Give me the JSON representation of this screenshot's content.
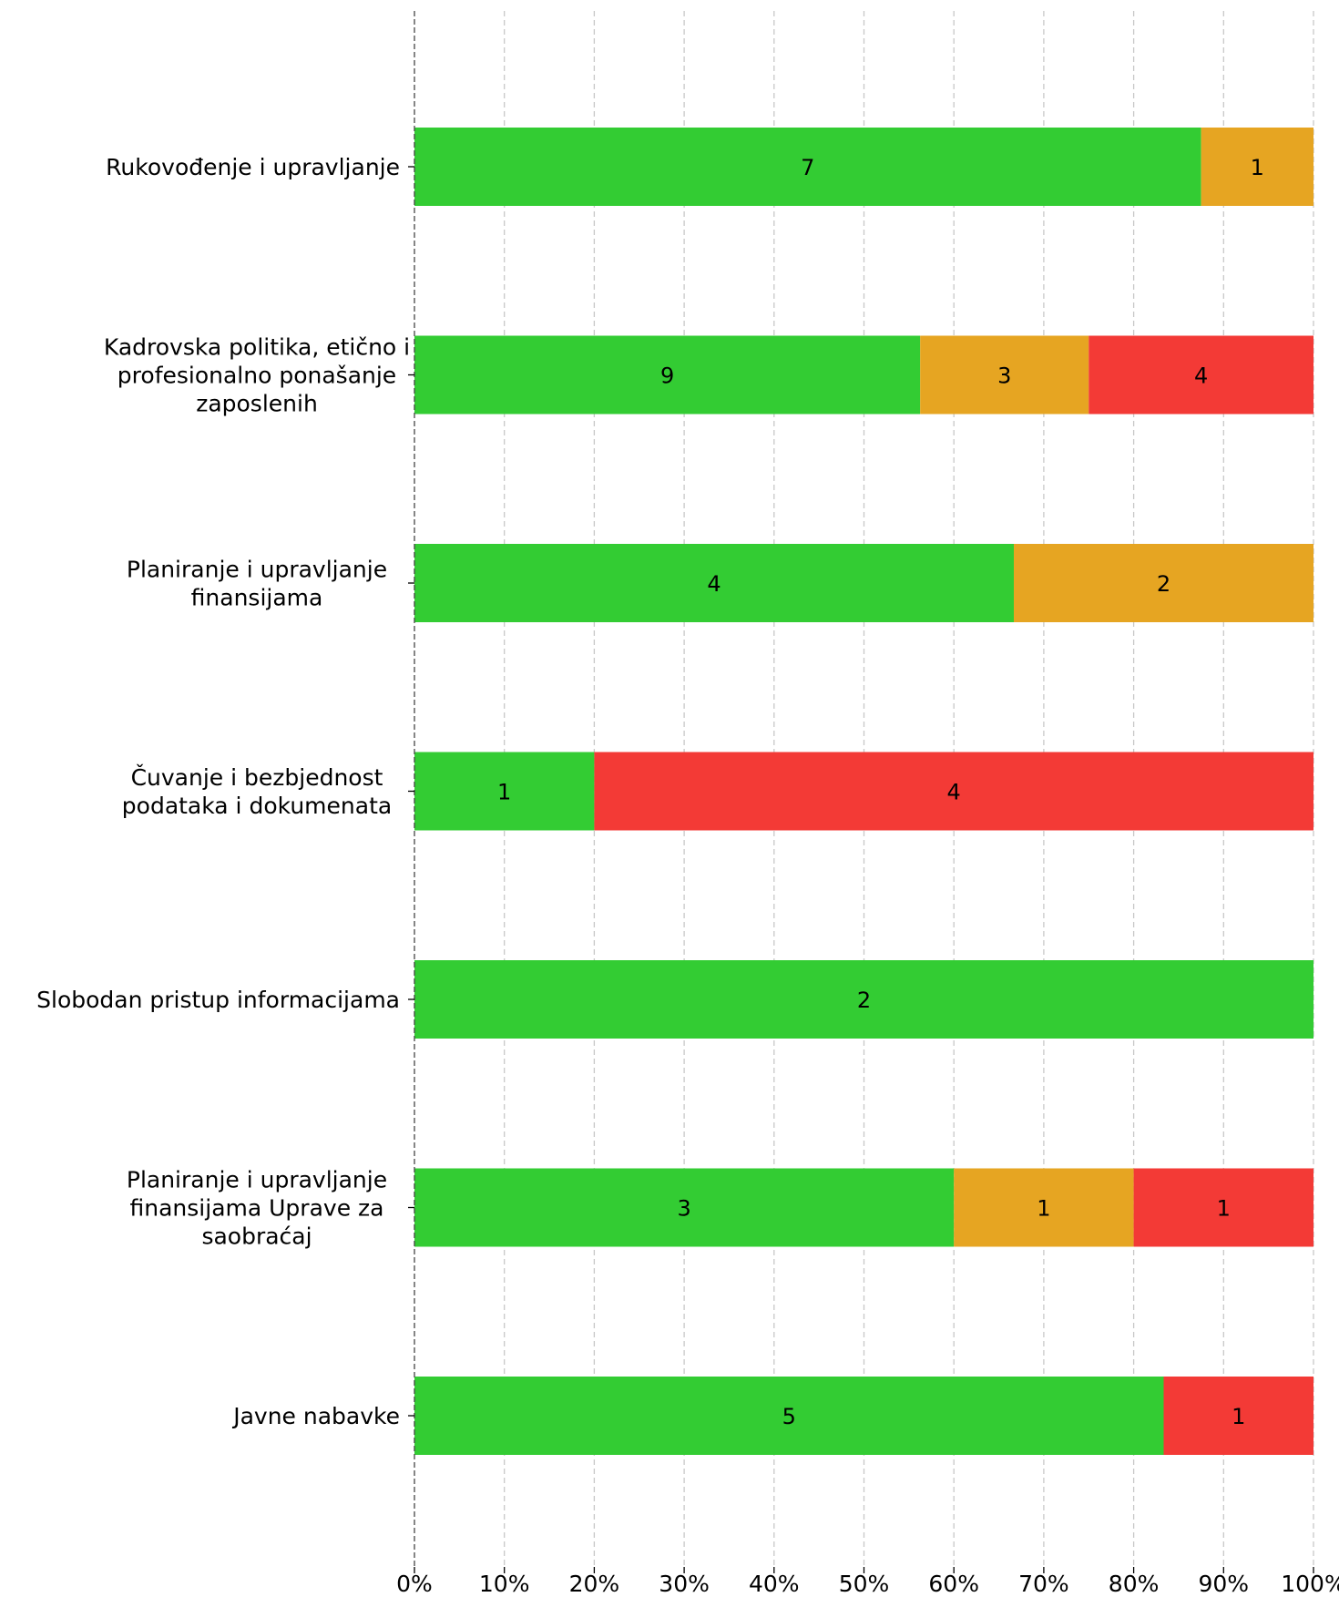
{
  "chart_data": {
    "type": "bar",
    "orientation": "horizontal",
    "stacked": true,
    "normalized": "percent",
    "categories": [
      [
        "Rukovođenje i upravljanje"
      ],
      [
        "Kadrovska politika, etično i",
        "profesionalno ponašanje",
        "zaposlenih"
      ],
      [
        "Planiranje i upravljanje",
        "finansijama"
      ],
      [
        "Čuvanje i bezbjednost",
        "podataka i dokumenata"
      ],
      [
        "Slobodan pristup informacijama"
      ],
      [
        "Planiranje i upravljanje",
        "finansijama Uprave za",
        "saobraćaj"
      ],
      [
        "Javne nabavke"
      ]
    ],
    "series": [
      {
        "color": "#33cc33",
        "values": [
          7,
          9,
          4,
          1,
          2,
          3,
          5
        ]
      },
      {
        "color": "#e6a522",
        "values": [
          1,
          3,
          2,
          0,
          0,
          1,
          0
        ]
      },
      {
        "color": "#f33a36",
        "values": [
          0,
          4,
          0,
          4,
          0,
          1,
          1
        ]
      }
    ],
    "x_ticks": [
      "0%",
      "10%",
      "20%",
      "30%",
      "40%",
      "50%",
      "60%",
      "70%",
      "80%",
      "90%",
      "100%"
    ],
    "xlim": [
      0,
      100
    ],
    "grid": "vertical dashed",
    "legend": "none"
  }
}
